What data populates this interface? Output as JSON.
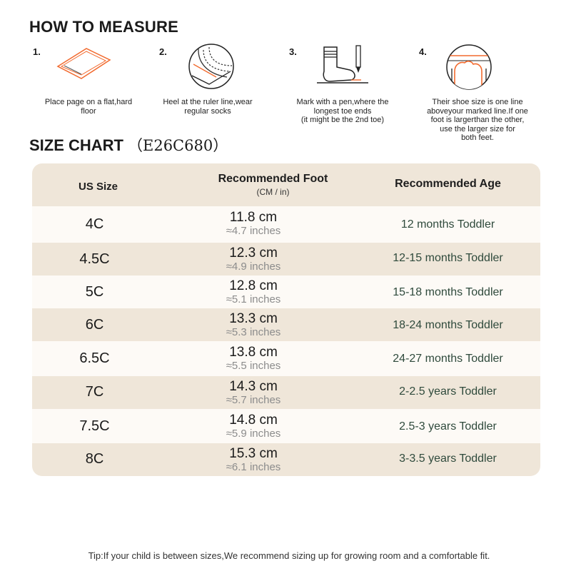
{
  "measure": {
    "title": "HOW TO MEASURE",
    "steps": [
      {
        "number": "1.",
        "caption_lines": [
          "Place page on a flat,hard",
          "floor"
        ],
        "icon": "paper-on-floor-icon"
      },
      {
        "number": "2.",
        "caption_lines": [
          "Heel at the ruler line,wear",
          "regular socks"
        ],
        "icon": "heel-on-ruler-icon"
      },
      {
        "number": "3.",
        "caption_lines": [
          "Mark with a pen,where the",
          "longest toe ends",
          "(it might be the 2nd toe)"
        ],
        "icon": "sock-and-pen-icon"
      },
      {
        "number": "4.",
        "caption_lines": [
          "Their shoe size is one line",
          "aboveyour marked line.If one",
          "foot is largerthan the other,",
          "use the larger size for",
          "both feet."
        ],
        "icon": "toe-line-icon"
      }
    ]
  },
  "size_chart": {
    "title": "SIZE CHART",
    "code": "（E26C680）",
    "headers": {
      "size": "US Size",
      "foot": "Recommended Foot",
      "foot_sub": "(CM / in)",
      "age": "Recommended Age"
    },
    "rows": [
      {
        "size": "4C",
        "cm": "11.8 cm",
        "inch": "≈4.7 inches",
        "age": "12 months Toddler"
      },
      {
        "size": "4.5C",
        "cm": "12.3 cm",
        "inch": "≈4.9 inches",
        "age": "12-15 months Toddler"
      },
      {
        "size": "5C",
        "cm": "12.8 cm",
        "inch": "≈5.1 inches",
        "age": "15-18 months Toddler"
      },
      {
        "size": "6C",
        "cm": "13.3 cm",
        "inch": "≈5.3 inches",
        "age": "18-24 months Toddler"
      },
      {
        "size": "6.5C",
        "cm": "13.8 cm",
        "inch": "≈5.5 inches",
        "age": "24-27 months Toddler"
      },
      {
        "size": "7C",
        "cm": "14.3 cm",
        "inch": "≈5.7 inches",
        "age": "2-2.5 years Toddler"
      },
      {
        "size": "7.5C",
        "cm": "14.8 cm",
        "inch": "≈5.9 inches",
        "age": "2.5-3 years Toddler"
      },
      {
        "size": "8C",
        "cm": "15.3 cm",
        "inch": "≈6.1 inches",
        "age": "3-3.5 years Toddler"
      }
    ]
  },
  "tip": "Tip:If your child is between sizes,We recommend sizing up for growing room and a comfortable fit.",
  "colors": {
    "accent": "#f26a2e",
    "table_bg": "#efe6d9",
    "row_light": "#fdfaf6",
    "age_text": "#2f4a3c"
  }
}
